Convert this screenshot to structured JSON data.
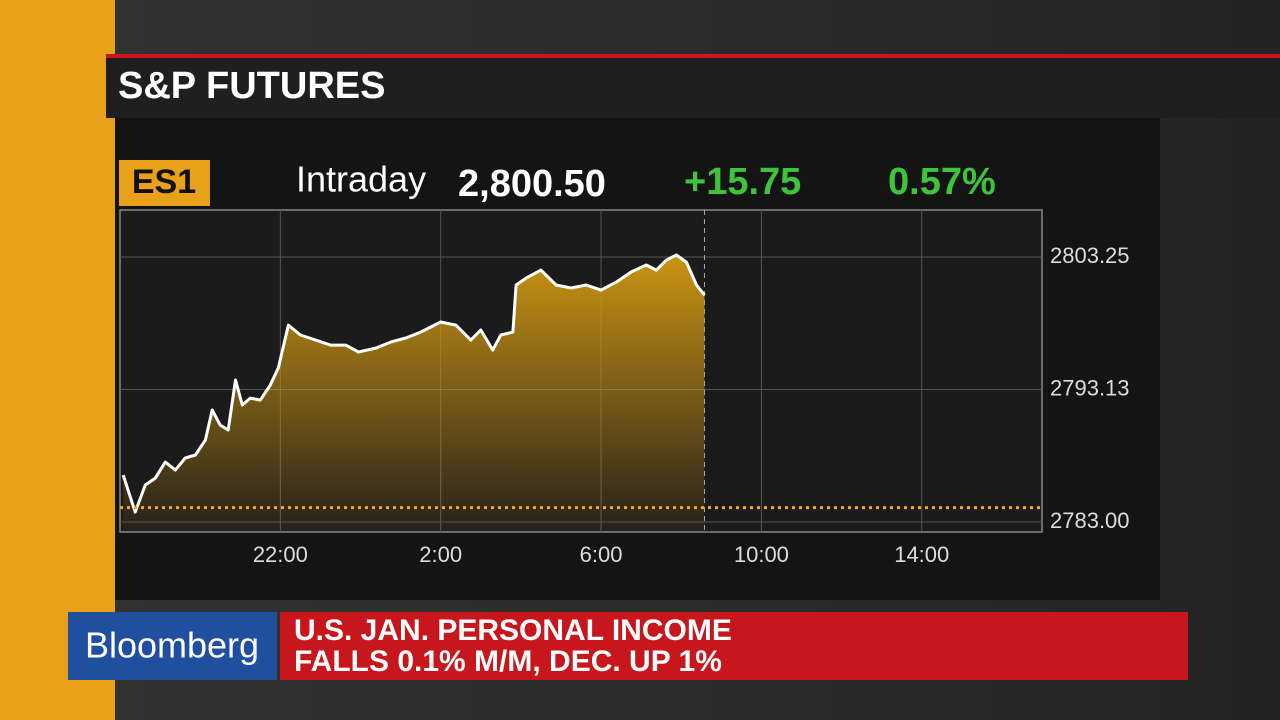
{
  "header": {
    "title": "S&P FUTURES"
  },
  "ticker": {
    "symbol": "ES1",
    "label": "Intraday",
    "price": "2,800.50",
    "change": "+15.75",
    "percent": "0.57%"
  },
  "chart_data": {
    "type": "area",
    "x": [
      0.08,
      0.38,
      0.63,
      0.88,
      1.13,
      1.38,
      1.63,
      1.88,
      2.13,
      2.3,
      2.5,
      2.7,
      2.88,
      3.05,
      3.25,
      3.5,
      3.75,
      3.95,
      4.2,
      4.5,
      4.88,
      5.25,
      5.63,
      5.95,
      6.38,
      6.75,
      7.13,
      7.5,
      8,
      8.38,
      8.75,
      9,
      9.3,
      9.5,
      9.8,
      9.88,
      10.13,
      10.5,
      10.88,
      11.25,
      11.63,
      12,
      12.38,
      12.75,
      13.13,
      13.38,
      13.63,
      13.88,
      14.13,
      14.38,
      14.58
    ],
    "series": [
      {
        "color": "#ffffff",
        "fill": "#d49a12",
        "values": [
          2786.59,
          2783.76,
          2785.83,
          2786.36,
          2787.58,
          2786.97,
          2787.89,
          2788.12,
          2789.26,
          2791.56,
          2790.41,
          2790.03,
          2793.85,
          2791.94,
          2792.47,
          2792.32,
          2793.47,
          2794.77,
          2798.05,
          2797.29,
          2796.9,
          2796.52,
          2796.52,
          2795.99,
          2796.29,
          2796.75,
          2797.06,
          2797.51,
          2798.28,
          2798.05,
          2796.9,
          2797.67,
          2796.14,
          2797.29,
          2797.51,
          2801.11,
          2801.64,
          2802.25,
          2801.11,
          2800.88,
          2801.11,
          2800.72,
          2801.33,
          2802.1,
          2802.64,
          2802.25,
          2803.01,
          2803.4,
          2802.86,
          2801.11,
          2800.34
        ]
      }
    ],
    "xlim": [
      0,
      23
    ],
    "xticks": [
      {
        "value": 4,
        "label": "22:00"
      },
      {
        "value": 8,
        "label": "2:00"
      },
      {
        "value": 12,
        "label": "6:00"
      },
      {
        "value": 16,
        "label": "10:00"
      },
      {
        "value": 20,
        "label": "14:00"
      }
    ],
    "ylim": [
      2782.24,
      2806.84
    ],
    "yticks": [
      {
        "value": 2783,
        "label": "2783.00"
      },
      2793.13,
      2803.25
    ],
    "reference_value": 2784.1,
    "reference_color": "#f5a623",
    "grid": true
  },
  "banner": {
    "brand": "Bloomberg",
    "headline": [
      "U.S. JAN. PERSONAL INCOME",
      "FALLS 0.1% M/M, DEC. UP 1%"
    ]
  }
}
